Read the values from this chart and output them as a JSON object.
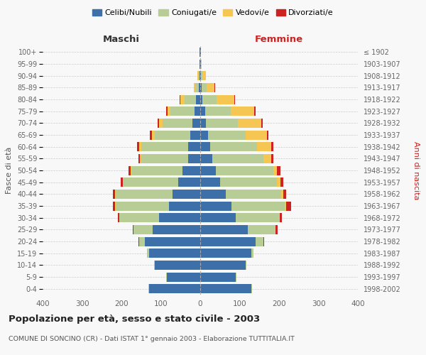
{
  "age_groups": [
    "0-4",
    "5-9",
    "10-14",
    "15-19",
    "20-24",
    "25-29",
    "30-34",
    "35-39",
    "40-44",
    "45-49",
    "50-54",
    "55-59",
    "60-64",
    "65-69",
    "70-74",
    "75-79",
    "80-84",
    "85-89",
    "90-94",
    "95-99",
    "100+"
  ],
  "birth_years": [
    "1998-2002",
    "1993-1997",
    "1988-1992",
    "1983-1987",
    "1978-1982",
    "1973-1977",
    "1968-1972",
    "1963-1967",
    "1958-1962",
    "1953-1957",
    "1948-1952",
    "1943-1947",
    "1938-1942",
    "1933-1937",
    "1928-1932",
    "1923-1927",
    "1918-1922",
    "1913-1917",
    "1908-1912",
    "1903-1907",
    "≤ 1902"
  ],
  "maschi": {
    "celibi": [
      130,
      85,
      115,
      130,
      140,
      120,
      105,
      80,
      70,
      55,
      45,
      30,
      30,
      25,
      20,
      15,
      10,
      4,
      2,
      1,
      1
    ],
    "coniugati": [
      2,
      2,
      2,
      5,
      15,
      50,
      100,
      135,
      145,
      140,
      130,
      120,
      120,
      90,
      75,
      60,
      30,
      8,
      3,
      1,
      0
    ],
    "vedovi": [
      0,
      0,
      0,
      0,
      0,
      0,
      1,
      1,
      2,
      2,
      2,
      3,
      5,
      8,
      10,
      8,
      10,
      5,
      2,
      0,
      0
    ],
    "divorziati": [
      0,
      0,
      0,
      1,
      2,
      2,
      3,
      5,
      5,
      5,
      5,
      3,
      5,
      5,
      3,
      3,
      2,
      0,
      0,
      0,
      0
    ]
  },
  "femmine": {
    "nubili": [
      130,
      90,
      115,
      130,
      140,
      120,
      90,
      80,
      65,
      50,
      40,
      30,
      25,
      20,
      15,
      12,
      6,
      4,
      2,
      1,
      1
    ],
    "coniugate": [
      2,
      2,
      2,
      5,
      20,
      70,
      110,
      135,
      140,
      145,
      145,
      130,
      120,
      95,
      80,
      65,
      35,
      12,
      4,
      1,
      0
    ],
    "vedove": [
      0,
      0,
      0,
      0,
      0,
      1,
      2,
      3,
      5,
      8,
      10,
      20,
      35,
      55,
      60,
      60,
      45,
      20,
      8,
      2,
      0
    ],
    "divorziate": [
      0,
      0,
      0,
      1,
      3,
      5,
      5,
      12,
      8,
      8,
      8,
      5,
      5,
      3,
      4,
      3,
      3,
      2,
      0,
      0,
      0
    ]
  },
  "colors": {
    "celibi": "#3d6fa8",
    "coniugati": "#b8cc96",
    "vedovi": "#f5c752",
    "divorziati": "#cc2222"
  },
  "title": "Popolazione per età, sesso e stato civile - 2003",
  "subtitle": "COMUNE DI SONCINO (CR) - Dati ISTAT 1° gennaio 2003 - Elaborazione TUTTITALIA.IT",
  "xlabel_left": "Maschi",
  "xlabel_right": "Femmine",
  "ylabel_left": "Fasce di età",
  "ylabel_right": "Anni di nascita",
  "xlim": 400,
  "legend_labels": [
    "Celibi/Nubili",
    "Coniugati/e",
    "Vedovi/e",
    "Divorziati/e"
  ],
  "background_color": "#f8f8f8"
}
